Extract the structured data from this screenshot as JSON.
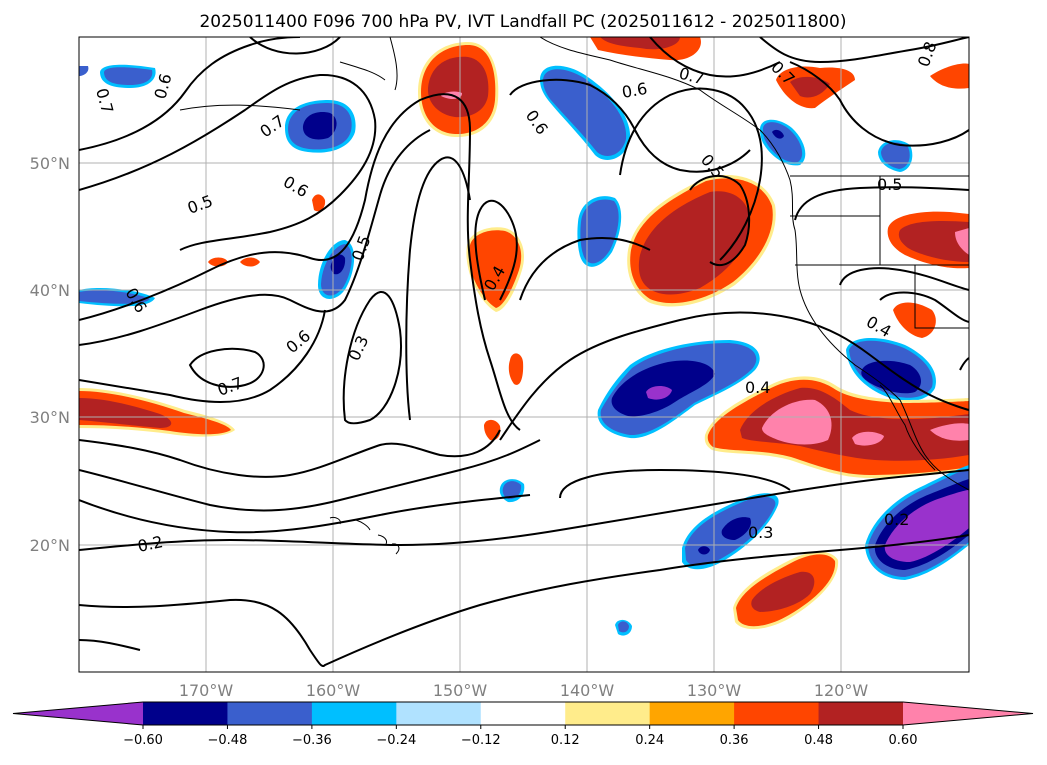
{
  "title": "2025011400 F096 700 hPa PV, IVT Landfall PC (2025011612 - 2025011800)",
  "map": {
    "lon_labels": [
      "170°W",
      "160°W",
      "150°W",
      "140°W",
      "130°W",
      "120°W"
    ],
    "lat_labels": [
      "50°N",
      "40°N",
      "30°N",
      "20°N"
    ],
    "contour_labels": [
      {
        "text": "0.6"
      },
      {
        "text": "0.7"
      },
      {
        "text": "0.7"
      },
      {
        "text": "0.6"
      },
      {
        "text": "0.5"
      },
      {
        "text": "0.6"
      },
      {
        "text": "0.5"
      },
      {
        "text": "0.6"
      },
      {
        "text": "0.3"
      },
      {
        "text": "0.7"
      },
      {
        "text": "0.4"
      },
      {
        "text": "0.6"
      },
      {
        "text": "0.6"
      },
      {
        "text": "0.5"
      },
      {
        "text": "0.7"
      },
      {
        "text": "0.8"
      },
      {
        "text": "0.5"
      },
      {
        "text": "0.4"
      },
      {
        "text": "0.4"
      },
      {
        "text": "0.3"
      },
      {
        "text": "0.2"
      },
      {
        "text": "0.2"
      },
      {
        "text": "0.7"
      }
    ]
  },
  "colorbar": {
    "ticks": [
      "−0.60",
      "−0.48",
      "−0.36",
      "−0.24",
      "−0.12",
      "0.12",
      "0.24",
      "0.36",
      "0.48",
      "0.60"
    ],
    "colors": [
      "#9932cc",
      "#00008b",
      "#3a5fcd",
      "#00bfff",
      "#b0e2ff",
      "#ffffff",
      "#ffec8b",
      "#ffa500",
      "#ff4500",
      "#b22222",
      "#ff82ab"
    ]
  },
  "colors": {
    "neg_strong": "#9932cc",
    "neg_dark": "#00008b",
    "neg_mid": "#3a5fcd",
    "neg_light": "#00bfff",
    "pos_light": "#ffec8b",
    "pos_orange": "#ffa500",
    "pos_redorange": "#ff4500",
    "pos_dark": "#b22222",
    "pos_pink": "#ff82ab"
  }
}
